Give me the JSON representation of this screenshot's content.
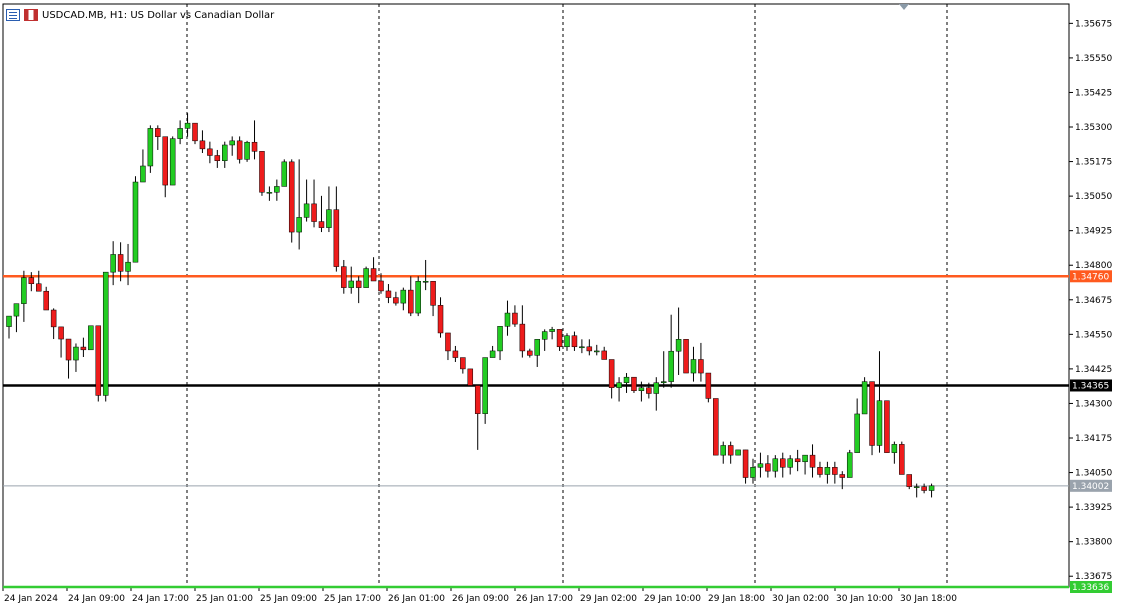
{
  "window": {
    "title": "USDCAD.MB, H1:  US Dollar vs Canadian Dollar",
    "icons": [
      "chart-list-icon",
      "symbol-flag-icon"
    ]
  },
  "chart_data": {
    "type": "candlestick",
    "symbol": "USDCAD.MB",
    "timeframe": "H1",
    "description": "US Dollar vs Canadian Dollar",
    "ylim": [
      1.33636,
      1.35745
    ],
    "y_ticks": [
      "1.35675",
      "1.35550",
      "1.35425",
      "1.35300",
      "1.35175",
      "1.35050",
      "1.34925",
      "1.34800",
      "1.34675",
      "1.34550",
      "1.34425",
      "1.34300",
      "1.34175",
      "1.34050",
      "1.33925",
      "1.33800",
      "1.33675"
    ],
    "x_ticks": [
      "24 Jan 2024",
      "24 Jan 09:00",
      "24 Jan 17:00",
      "25 Jan 01:00",
      "25 Jan 09:00",
      "25 Jan 17:00",
      "26 Jan 01:00",
      "26 Jan 09:00",
      "26 Jan 17:00",
      "29 Jan 02:00",
      "29 Jan 10:00",
      "29 Jan 18:00",
      "30 Jan 02:00",
      "30 Jan 10:00",
      "30 Jan 18:00"
    ],
    "period_separators": [
      "24 Jan 17:00",
      "25 Jan 17:00",
      "26 Jan 17:00",
      "29 Jan 18:00",
      "30 Jan 18:00"
    ],
    "horizontal_lines": [
      {
        "price": 1.3476,
        "label": "1.34760",
        "color": "#ff5a1f"
      },
      {
        "price": 1.34365,
        "label": "1.34365",
        "color": "#000000"
      },
      {
        "price": 1.33636,
        "label": "1.33636",
        "color": "#33cc33"
      }
    ],
    "current_price": {
      "price": 1.34002,
      "label": "1.34002",
      "color": "#9aa3ad"
    },
    "colors": {
      "bull": "#22cc22",
      "bear": "#ee1c1c",
      "wick": "#000000"
    },
    "candles": [
      {
        "o": 1.34578,
        "h": 1.34616,
        "l": 1.34535,
        "c": 1.34616
      },
      {
        "o": 1.34616,
        "h": 1.34661,
        "l": 1.34558,
        "c": 1.34661
      },
      {
        "o": 1.34661,
        "h": 1.3478,
        "l": 1.34595,
        "c": 1.34755
      },
      {
        "o": 1.34755,
        "h": 1.34775,
        "l": 1.34706,
        "c": 1.34733
      },
      {
        "o": 1.34733,
        "h": 1.3478,
        "l": 1.34706,
        "c": 1.34706
      },
      {
        "o": 1.34706,
        "h": 1.34722,
        "l": 1.34638,
        "c": 1.34638
      },
      {
        "o": 1.34638,
        "h": 1.34644,
        "l": 1.34533,
        "c": 1.34577
      },
      {
        "o": 1.34577,
        "h": 1.34577,
        "l": 1.34466,
        "c": 1.34533
      },
      {
        "o": 1.34533,
        "h": 1.34533,
        "l": 1.3439,
        "c": 1.34457
      },
      {
        "o": 1.34457,
        "h": 1.34517,
        "l": 1.34414,
        "c": 1.34504
      },
      {
        "o": 1.34504,
        "h": 1.34538,
        "l": 1.34468,
        "c": 1.34494
      },
      {
        "o": 1.34494,
        "h": 1.34581,
        "l": 1.34494,
        "c": 1.34581
      },
      {
        "o": 1.34581,
        "h": 1.34581,
        "l": 1.34307,
        "c": 1.34329
      },
      {
        "o": 1.34329,
        "h": 1.34775,
        "l": 1.34307,
        "c": 1.34775
      },
      {
        "o": 1.34775,
        "h": 1.34887,
        "l": 1.34728,
        "c": 1.34839
      },
      {
        "o": 1.34839,
        "h": 1.34883,
        "l": 1.34742,
        "c": 1.34778
      },
      {
        "o": 1.34778,
        "h": 1.34877,
        "l": 1.34728,
        "c": 1.34811
      },
      {
        "o": 1.34811,
        "h": 1.35122,
        "l": 1.34811,
        "c": 1.35101
      },
      {
        "o": 1.35101,
        "h": 1.35219,
        "l": 1.35101,
        "c": 1.35159
      },
      {
        "o": 1.35159,
        "h": 1.35306,
        "l": 1.35134,
        "c": 1.35295
      },
      {
        "o": 1.35295,
        "h": 1.35306,
        "l": 1.35217,
        "c": 1.35265
      },
      {
        "o": 1.35265,
        "h": 1.35265,
        "l": 1.35046,
        "c": 1.3509
      },
      {
        "o": 1.3509,
        "h": 1.35266,
        "l": 1.3509,
        "c": 1.35258
      },
      {
        "o": 1.35258,
        "h": 1.35324,
        "l": 1.35238,
        "c": 1.35295
      },
      {
        "o": 1.35295,
        "h": 1.3535,
        "l": 1.35265,
        "c": 1.35314
      },
      {
        "o": 1.35314,
        "h": 1.35314,
        "l": 1.35238,
        "c": 1.3525
      },
      {
        "o": 1.3525,
        "h": 1.35288,
        "l": 1.35206,
        "c": 1.35221
      },
      {
        "o": 1.35221,
        "h": 1.35247,
        "l": 1.35169,
        "c": 1.35197
      },
      {
        "o": 1.35197,
        "h": 1.35217,
        "l": 1.35152,
        "c": 1.35178
      },
      {
        "o": 1.35178,
        "h": 1.35247,
        "l": 1.35152,
        "c": 1.35235
      },
      {
        "o": 1.35235,
        "h": 1.35266,
        "l": 1.35196,
        "c": 1.3525
      },
      {
        "o": 1.3525,
        "h": 1.35266,
        "l": 1.35168,
        "c": 1.35183
      },
      {
        "o": 1.35183,
        "h": 1.3525,
        "l": 1.35174,
        "c": 1.35245
      },
      {
        "o": 1.35245,
        "h": 1.35324,
        "l": 1.35183,
        "c": 1.35212
      },
      {
        "o": 1.35212,
        "h": 1.35212,
        "l": 1.35051,
        "c": 1.35064
      },
      {
        "o": 1.35064,
        "h": 1.35085,
        "l": 1.35033,
        "c": 1.35064
      },
      {
        "o": 1.35064,
        "h": 1.3511,
        "l": 1.35033,
        "c": 1.35085
      },
      {
        "o": 1.35085,
        "h": 1.35183,
        "l": 1.35085,
        "c": 1.35174
      },
      {
        "o": 1.35174,
        "h": 1.35183,
        "l": 1.34882,
        "c": 1.3492
      },
      {
        "o": 1.3492,
        "h": 1.35183,
        "l": 1.34857,
        "c": 1.34973
      },
      {
        "o": 1.34973,
        "h": 1.3511,
        "l": 1.34958,
        "c": 1.35022
      },
      {
        "o": 1.35022,
        "h": 1.3511,
        "l": 1.34937,
        "c": 1.34958
      },
      {
        "o": 1.34958,
        "h": 1.35051,
        "l": 1.3492,
        "c": 1.34936
      },
      {
        "o": 1.34936,
        "h": 1.35085,
        "l": 1.3492,
        "c": 1.35001
      },
      {
        "o": 1.35001,
        "h": 1.35085,
        "l": 1.34777,
        "c": 1.34795
      },
      {
        "o": 1.34795,
        "h": 1.34819,
        "l": 1.34697,
        "c": 1.34719
      },
      {
        "o": 1.34719,
        "h": 1.34795,
        "l": 1.34697,
        "c": 1.34743
      },
      {
        "o": 1.34743,
        "h": 1.3476,
        "l": 1.34663,
        "c": 1.34719
      },
      {
        "o": 1.34719,
        "h": 1.34795,
        "l": 1.34719,
        "c": 1.34788
      },
      {
        "o": 1.34788,
        "h": 1.34829,
        "l": 1.34743,
        "c": 1.34743
      },
      {
        "o": 1.34743,
        "h": 1.34771,
        "l": 1.34697,
        "c": 1.34707
      },
      {
        "o": 1.34707,
        "h": 1.34732,
        "l": 1.34663,
        "c": 1.34683
      },
      {
        "o": 1.34683,
        "h": 1.34704,
        "l": 1.34654,
        "c": 1.34663
      },
      {
        "o": 1.34663,
        "h": 1.34719,
        "l": 1.34637,
        "c": 1.3471
      },
      {
        "o": 1.3471,
        "h": 1.3476,
        "l": 1.34616,
        "c": 1.34627
      },
      {
        "o": 1.34627,
        "h": 1.3476,
        "l": 1.34616,
        "c": 1.34742
      },
      {
        "o": 1.34742,
        "h": 1.34819,
        "l": 1.3471,
        "c": 1.34742
      },
      {
        "o": 1.34742,
        "h": 1.34742,
        "l": 1.34616,
        "c": 1.34655
      },
      {
        "o": 1.34655,
        "h": 1.34684,
        "l": 1.34538,
        "c": 1.34555
      },
      {
        "o": 1.34555,
        "h": 1.34555,
        "l": 1.34457,
        "c": 1.3449
      },
      {
        "o": 1.3449,
        "h": 1.34508,
        "l": 1.3445,
        "c": 1.34466
      },
      {
        "o": 1.34466,
        "h": 1.34466,
        "l": 1.34408,
        "c": 1.34425
      },
      {
        "o": 1.34425,
        "h": 1.34425,
        "l": 1.34365,
        "c": 1.34365
      },
      {
        "o": 1.34365,
        "h": 1.34365,
        "l": 1.34132,
        "c": 1.34263
      },
      {
        "o": 1.34263,
        "h": 1.34466,
        "l": 1.34226,
        "c": 1.34466
      },
      {
        "o": 1.34466,
        "h": 1.34508,
        "l": 1.34466,
        "c": 1.3449
      },
      {
        "o": 1.3449,
        "h": 1.34579,
        "l": 1.34457,
        "c": 1.34579
      },
      {
        "o": 1.34579,
        "h": 1.34672,
        "l": 1.34545,
        "c": 1.34627
      },
      {
        "o": 1.34627,
        "h": 1.34655,
        "l": 1.34577,
        "c": 1.34587
      },
      {
        "o": 1.34587,
        "h": 1.34655,
        "l": 1.34466,
        "c": 1.3449
      },
      {
        "o": 1.3449,
        "h": 1.34498,
        "l": 1.34466,
        "c": 1.34474
      },
      {
        "o": 1.34474,
        "h": 1.34532,
        "l": 1.34432,
        "c": 1.34532
      },
      {
        "o": 1.34532,
        "h": 1.34568,
        "l": 1.3449,
        "c": 1.3456
      },
      {
        "o": 1.3456,
        "h": 1.34577,
        "l": 1.34532,
        "c": 1.34568
      },
      {
        "o": 1.34568,
        "h": 1.34568,
        "l": 1.3449,
        "c": 1.34505
      },
      {
        "o": 1.34505,
        "h": 1.34554,
        "l": 1.3449,
        "c": 1.34545
      },
      {
        "o": 1.34545,
        "h": 1.3456,
        "l": 1.3449,
        "c": 1.34505
      },
      {
        "o": 1.34505,
        "h": 1.34532,
        "l": 1.34482,
        "c": 1.34505
      },
      {
        "o": 1.34505,
        "h": 1.34532,
        "l": 1.34474,
        "c": 1.3449
      },
      {
        "o": 1.3449,
        "h": 1.34512,
        "l": 1.34474,
        "c": 1.3449
      },
      {
        "o": 1.3449,
        "h": 1.34505,
        "l": 1.34459,
        "c": 1.34459
      },
      {
        "o": 1.34459,
        "h": 1.34459,
        "l": 1.34318,
        "c": 1.34357
      },
      {
        "o": 1.34357,
        "h": 1.34395,
        "l": 1.34307,
        "c": 1.34375
      },
      {
        "o": 1.34375,
        "h": 1.3441,
        "l": 1.34338,
        "c": 1.34395
      },
      {
        "o": 1.34395,
        "h": 1.34395,
        "l": 1.34338,
        "c": 1.34346
      },
      {
        "o": 1.34346,
        "h": 1.34379,
        "l": 1.34307,
        "c": 1.34357
      },
      {
        "o": 1.34357,
        "h": 1.34375,
        "l": 1.34318,
        "c": 1.34336
      },
      {
        "o": 1.34336,
        "h": 1.34395,
        "l": 1.34274,
        "c": 1.34375
      },
      {
        "o": 1.34375,
        "h": 1.34489,
        "l": 1.34357,
        "c": 1.34379
      },
      {
        "o": 1.34379,
        "h": 1.34621,
        "l": 1.34357,
        "c": 1.34489
      },
      {
        "o": 1.34489,
        "h": 1.34647,
        "l": 1.34403,
        "c": 1.34532
      },
      {
        "o": 1.34532,
        "h": 1.34532,
        "l": 1.3441,
        "c": 1.3441
      },
      {
        "o": 1.3441,
        "h": 1.34505,
        "l": 1.34379,
        "c": 1.34459
      },
      {
        "o": 1.34459,
        "h": 1.34519,
        "l": 1.34379,
        "c": 1.3441
      },
      {
        "o": 1.3441,
        "h": 1.3441,
        "l": 1.34304,
        "c": 1.34318
      },
      {
        "o": 1.34318,
        "h": 1.34318,
        "l": 1.34113,
        "c": 1.34113
      },
      {
        "o": 1.34113,
        "h": 1.34162,
        "l": 1.34082,
        "c": 1.34148
      },
      {
        "o": 1.34148,
        "h": 1.34162,
        "l": 1.34082,
        "c": 1.34113
      },
      {
        "o": 1.34113,
        "h": 1.34132,
        "l": 1.34113,
        "c": 1.34132
      },
      {
        "o": 1.34132,
        "h": 1.34132,
        "l": 1.3401,
        "c": 1.34032
      },
      {
        "o": 1.34032,
        "h": 1.341,
        "l": 1.3401,
        "c": 1.34069
      },
      {
        "o": 1.34069,
        "h": 1.34122,
        "l": 1.34032,
        "c": 1.34082
      },
      {
        "o": 1.34082,
        "h": 1.34113,
        "l": 1.34032,
        "c": 1.34055
      },
      {
        "o": 1.34055,
        "h": 1.34113,
        "l": 1.34032,
        "c": 1.341
      },
      {
        "o": 1.341,
        "h": 1.34122,
        "l": 1.34032,
        "c": 1.34069
      },
      {
        "o": 1.34069,
        "h": 1.34113,
        "l": 1.34043,
        "c": 1.341
      },
      {
        "o": 1.341,
        "h": 1.34132,
        "l": 1.34055,
        "c": 1.34089
      },
      {
        "o": 1.34089,
        "h": 1.34113,
        "l": 1.34043,
        "c": 1.34113
      },
      {
        "o": 1.34113,
        "h": 1.34152,
        "l": 1.34032,
        "c": 1.34069
      },
      {
        "o": 1.34069,
        "h": 1.34089,
        "l": 1.34032,
        "c": 1.34043
      },
      {
        "o": 1.34043,
        "h": 1.34089,
        "l": 1.3401,
        "c": 1.34069
      },
      {
        "o": 1.34069,
        "h": 1.34089,
        "l": 1.3401,
        "c": 1.34043
      },
      {
        "o": 1.34043,
        "h": 1.34055,
        "l": 1.3399,
        "c": 1.34032
      },
      {
        "o": 1.34032,
        "h": 1.34132,
        "l": 1.34032,
        "c": 1.34122
      },
      {
        "o": 1.34122,
        "h": 1.34318,
        "l": 1.34122,
        "c": 1.34262
      },
      {
        "o": 1.34262,
        "h": 1.34395,
        "l": 1.34262,
        "c": 1.34379
      },
      {
        "o": 1.34379,
        "h": 1.34379,
        "l": 1.34113,
        "c": 1.34148
      },
      {
        "o": 1.34148,
        "h": 1.34489,
        "l": 1.34122,
        "c": 1.3431
      },
      {
        "o": 1.3431,
        "h": 1.3431,
        "l": 1.34122,
        "c": 1.34122
      },
      {
        "o": 1.34122,
        "h": 1.34162,
        "l": 1.34082,
        "c": 1.34152
      },
      {
        "o": 1.34152,
        "h": 1.34162,
        "l": 1.34043,
        "c": 1.34043
      },
      {
        "o": 1.34043,
        "h": 1.34043,
        "l": 1.3399,
        "c": 1.33999
      },
      {
        "o": 1.33999,
        "h": 1.3401,
        "l": 1.3396,
        "c": 1.33999
      },
      {
        "o": 1.33999,
        "h": 1.3401,
        "l": 1.33975,
        "c": 1.33985
      },
      {
        "o": 1.33985,
        "h": 1.3401,
        "l": 1.3396,
        "c": 1.34002
      }
    ]
  }
}
